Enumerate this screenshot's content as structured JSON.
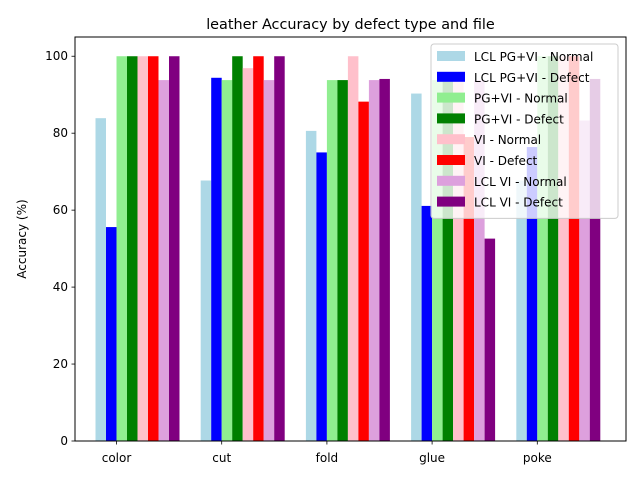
{
  "chart_data": {
    "type": "bar",
    "title": "leather Accuracy by defect type and file",
    "xlabel": "",
    "ylabel": "Accuracy (%)",
    "categories": [
      "color",
      "cut",
      "fold",
      "glue",
      "poke"
    ],
    "ylim": [
      0,
      105
    ],
    "yticks": [
      0,
      20,
      40,
      60,
      80,
      100
    ],
    "grid": false,
    "legend_position": "top-right",
    "series": [
      {
        "name": "LCL PG+VI - Normal",
        "color": "#add8e6",
        "values": [
          83.9,
          67.7,
          80.6,
          90.3,
          67.7
        ]
      },
      {
        "name": "LCL PG+VI - Defect",
        "color": "#0000ff",
        "values": [
          55.6,
          94.4,
          75.0,
          61.1,
          76.4
        ]
      },
      {
        "name": "PG+VI - Normal",
        "color": "#90ee90",
        "values": [
          100,
          93.8,
          93.8,
          93.8,
          100
        ]
      },
      {
        "name": "PG+VI - Defect",
        "color": "#008000",
        "values": [
          100,
          100,
          93.8,
          93.8,
          100
        ]
      },
      {
        "name": "VI - Normal",
        "color": "#ffc0cb",
        "values": [
          100,
          96.9,
          100,
          93.8,
          100
        ]
      },
      {
        "name": "VI - Defect",
        "color": "#ff0000",
        "values": [
          100,
          100,
          88.2,
          79.0,
          100
        ]
      },
      {
        "name": "LCL VI - Normal",
        "color": "#dda0dd",
        "values": [
          93.8,
          93.8,
          93.8,
          93.8,
          83.3
        ]
      },
      {
        "name": "LCL VI - Defect",
        "color": "#800080",
        "values": [
          100,
          100,
          94.1,
          52.6,
          94.1
        ]
      }
    ]
  }
}
